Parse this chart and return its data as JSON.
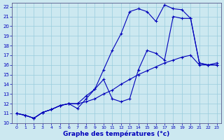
{
  "xlabel": "Graphe des températures (°c)",
  "bg_color": "#cce8f0",
  "grid_color": "#99ccdd",
  "line_color": "#0000bb",
  "xlim": [
    0,
    23
  ],
  "ylim": [
    10,
    22
  ],
  "xticks": [
    0,
    1,
    2,
    3,
    4,
    5,
    6,
    7,
    8,
    9,
    10,
    11,
    12,
    13,
    14,
    15,
    16,
    17,
    18,
    19,
    20,
    21,
    22,
    23
  ],
  "yticks": [
    10,
    11,
    12,
    13,
    14,
    15,
    16,
    17,
    18,
    19,
    20,
    21,
    22
  ],
  "s1_x": [
    0,
    1,
    2,
    3,
    4,
    5,
    6,
    7,
    8,
    9,
    10,
    11,
    12,
    13,
    14,
    15,
    16,
    17,
    18,
    19,
    20,
    21,
    22,
    23
  ],
  "s1_y": [
    11.0,
    10.8,
    10.5,
    11.1,
    11.4,
    11.8,
    12.0,
    12.0,
    12.2,
    12.5,
    13.0,
    13.4,
    14.0,
    14.5,
    15.0,
    15.4,
    15.8,
    16.2,
    16.5,
    16.8,
    17.0,
    16.0,
    16.0,
    16.0
  ],
  "s2_x": [
    0,
    1,
    2,
    3,
    4,
    5,
    6,
    7,
    8,
    9,
    10,
    11,
    12,
    13,
    14,
    15,
    16,
    17,
    18,
    19,
    20,
    21,
    22,
    23
  ],
  "s2_y": [
    11.0,
    10.8,
    10.5,
    11.1,
    11.4,
    11.8,
    12.0,
    12.0,
    12.8,
    13.5,
    15.5,
    17.5,
    19.2,
    21.5,
    21.8,
    21.5,
    20.5,
    22.2,
    21.8,
    21.7,
    20.8,
    16.2,
    16.0,
    16.2
  ],
  "s3_x": [
    0,
    1,
    2,
    3,
    4,
    5,
    6,
    7,
    8,
    9,
    10,
    11,
    12,
    13,
    14,
    15,
    16,
    17,
    18,
    19,
    20,
    21,
    22,
    23
  ],
  "s3_y": [
    11.0,
    10.8,
    10.5,
    11.1,
    11.4,
    11.8,
    12.0,
    11.5,
    12.5,
    13.5,
    14.5,
    12.5,
    12.2,
    12.5,
    15.5,
    17.5,
    17.2,
    16.5,
    21.0,
    20.8,
    20.8,
    16.2,
    16.0,
    16.0
  ]
}
